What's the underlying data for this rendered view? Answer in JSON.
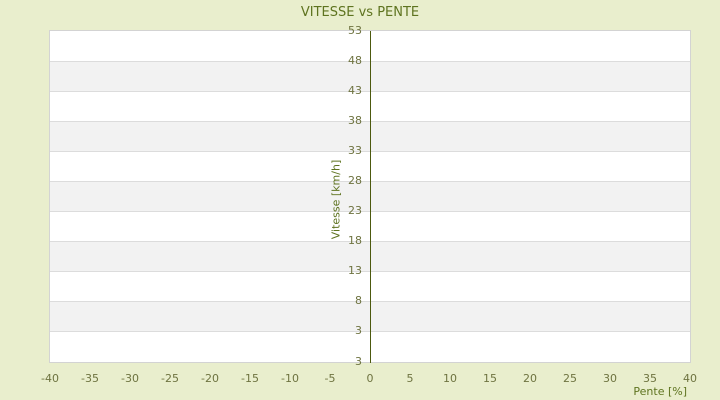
{
  "title": "VITESSE vs PENTE",
  "chart_data": {
    "type": "scatter",
    "title": "VITESSE vs PENTE",
    "xlabel": "Pente [%]",
    "ylabel": "Vitesse [km/h]",
    "xlim": [
      -40,
      40
    ],
    "x_tick_labels": [
      "-40",
      "-35",
      "-30",
      "-25",
      "-20",
      "-15",
      "-10",
      "-5",
      "0",
      "5",
      "10",
      "15",
      "20",
      "25",
      "30",
      "35",
      "40"
    ],
    "y_tick_labels_top_to_bottom": [
      "53",
      "48",
      "43",
      "38",
      "33",
      "28",
      "23",
      "18",
      "13",
      "8",
      "3",
      "3"
    ],
    "series": [],
    "legend": "none",
    "grid": {
      "horizontal_stripe_bands": true,
      "vertical_axis_at_x": 0
    }
  },
  "colors": {
    "background": "#e9eecd",
    "plot_background": "#ffffff",
    "band_stripe": "#f2f2f2",
    "gridline": "#dcdcdc",
    "plot_border": "#d3d3d3",
    "axis_line": "#4c590e",
    "title_text": "#5e731f",
    "tick_text": "#6e7340"
  }
}
